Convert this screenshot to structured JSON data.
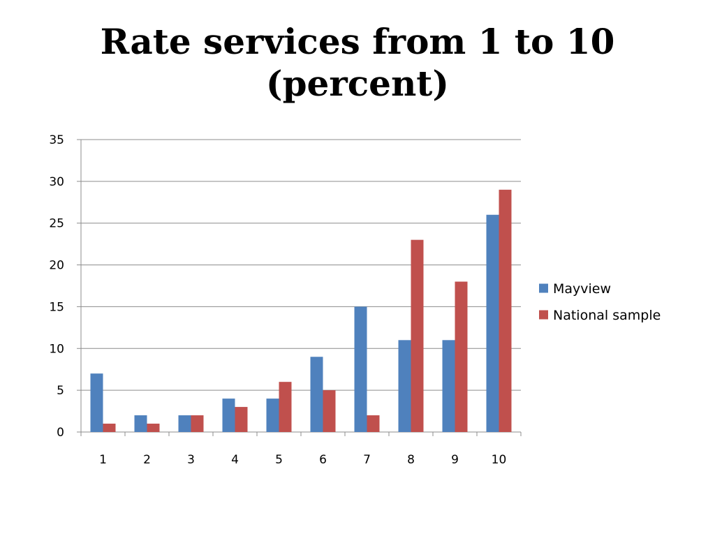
{
  "slide": {
    "title_line1": "Rate services from 1 to 10",
    "title_line2": "(percent)"
  },
  "chart_data": {
    "type": "bar",
    "categories": [
      "1",
      "2",
      "3",
      "4",
      "5",
      "6",
      "7",
      "8",
      "9",
      "10"
    ],
    "series": [
      {
        "name": "Mayview",
        "color": "#4F81BD",
        "values": [
          7,
          2,
          2,
          4,
          4,
          9,
          15,
          11,
          11,
          26
        ]
      },
      {
        "name": "National sample",
        "color": "#C0504D",
        "values": [
          1,
          1,
          2,
          3,
          6,
          5,
          2,
          23,
          18,
          29
        ]
      }
    ],
    "ylim": [
      0,
      35
    ],
    "yticks": [
      0,
      5,
      10,
      15,
      20,
      25,
      30,
      35
    ],
    "grid": true,
    "legend_position": "right"
  }
}
